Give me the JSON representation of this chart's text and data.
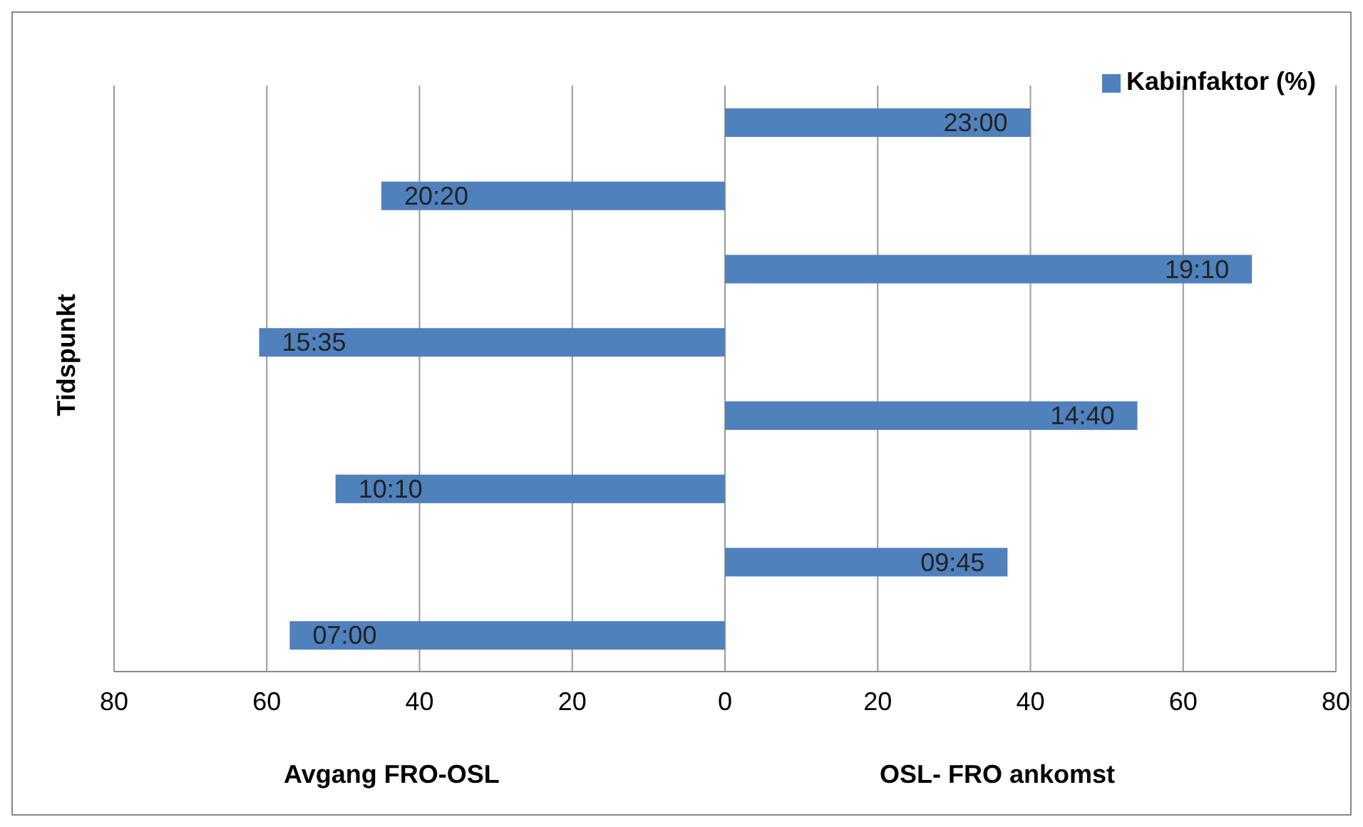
{
  "chart_data": {
    "type": "bar",
    "orientation": "horizontal",
    "ylabel": "Tidspunkt",
    "xlabel": "Avgang FRO-OSL",
    "annotations": [
      "OSL- FRO ankomst"
    ],
    "categories": [
      "23:00",
      "20:20",
      "19:10",
      "15:35",
      "14:40",
      "10:10",
      "09:45",
      "07:00"
    ],
    "series": [
      {
        "name": "Kabinfaktor (%)",
        "color": "#4f81bd",
        "values": [
          40,
          -45,
          69,
          -61,
          54,
          -51,
          37,
          -57
        ]
      }
    ],
    "xlim": [
      -80,
      80
    ],
    "xticks": [
      {
        "value": -80,
        "label": "80"
      },
      {
        "value": -60,
        "label": "60"
      },
      {
        "value": -40,
        "label": "40"
      },
      {
        "value": -20,
        "label": "20"
      },
      0,
      20,
      40,
      60,
      80
    ],
    "grid": "x",
    "legend": "top right",
    "tick_labels": "x"
  }
}
